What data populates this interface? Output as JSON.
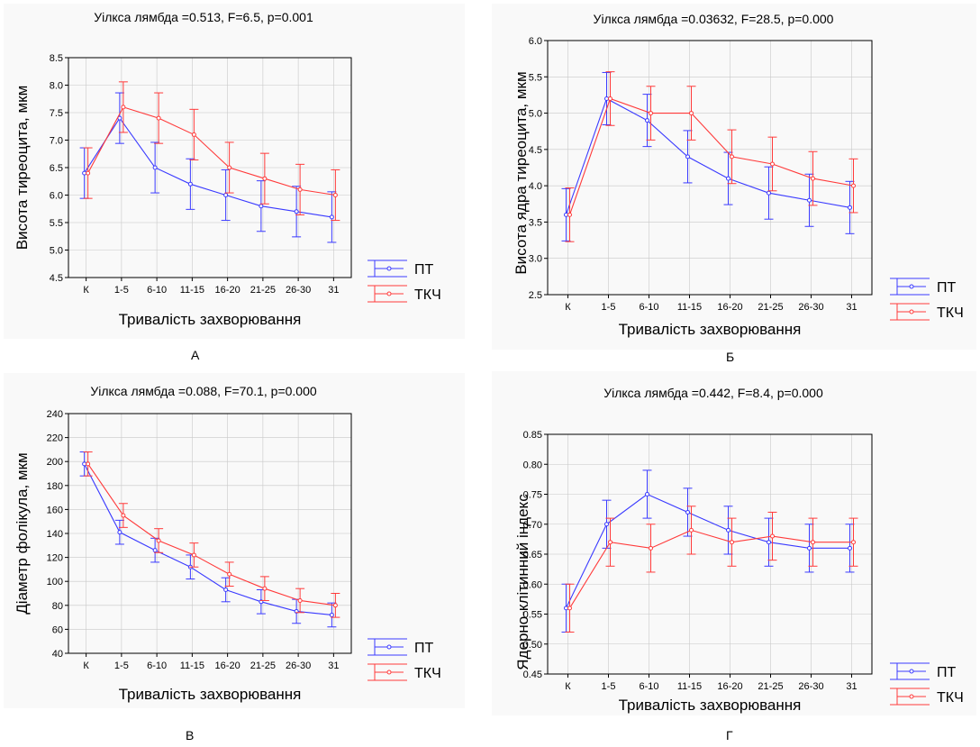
{
  "legend": {
    "series1": "ПТ",
    "series2": "ТКЧ"
  },
  "colors": {
    "series1": "#3a3aff",
    "series2": "#ff3a3a",
    "axis": "#000000",
    "grid": "#c8c8c8",
    "panel": "#f9f9f9"
  },
  "captions": [
    "А",
    "Б",
    "В",
    "Г"
  ],
  "chart_data": [
    {
      "type": "line",
      "title": "Уілкса лямбда =0.513, F=6.5, p=0.001",
      "xlabel": "Тривалість захворювання",
      "ylabel": "Висота  тиреоцита,  мкм",
      "categories": [
        "К",
        "1-5",
        "6-10",
        "11-15",
        "16-20",
        "21-25",
        "26-30",
        "31"
      ],
      "ylim": [
        4.5,
        8.5
      ],
      "yticks": [
        "4.5",
        "5.0",
        "5.5",
        "6.0",
        "6.5",
        "7.0",
        "7.5",
        "8.0",
        "8.5"
      ],
      "series": [
        {
          "name": "ПТ",
          "values": [
            6.4,
            7.4,
            6.5,
            6.2,
            6.0,
            5.8,
            5.7,
            5.6
          ],
          "err": [
            0.46,
            0.46,
            0.46,
            0.46,
            0.46,
            0.46,
            0.46,
            0.46
          ]
        },
        {
          "name": "ТКЧ",
          "values": [
            6.4,
            7.6,
            7.4,
            7.1,
            6.5,
            6.3,
            6.1,
            6.0
          ],
          "err": [
            0.46,
            0.46,
            0.46,
            0.46,
            0.46,
            0.46,
            0.46,
            0.46
          ]
        }
      ]
    },
    {
      "type": "line",
      "title": "Уілкса лямбда =0.03632, F=28.5, p=0.000",
      "xlabel": "Тривалість захворювання",
      "ylabel": "Висота ядра тиреоцита, мкм",
      "categories": [
        "К",
        "1-5",
        "6-10",
        "11-15",
        "16-20",
        "21-25",
        "26-30",
        "31"
      ],
      "ylim": [
        2.5,
        6.0
      ],
      "yticks": [
        "2.5",
        "3.0",
        "3.5",
        "4.0",
        "4.5",
        "5.0",
        "5.5",
        "6.0"
      ],
      "series": [
        {
          "name": "ПТ",
          "values": [
            3.6,
            5.2,
            4.9,
            4.4,
            4.1,
            3.9,
            3.8,
            3.7
          ],
          "err": [
            0.36,
            0.36,
            0.36,
            0.36,
            0.36,
            0.36,
            0.36,
            0.36
          ]
        },
        {
          "name": "ТКЧ",
          "values": [
            3.6,
            5.2,
            5.0,
            5.0,
            4.4,
            4.3,
            4.1,
            4.0
          ],
          "err": [
            0.37,
            0.37,
            0.37,
            0.37,
            0.37,
            0.37,
            0.37,
            0.37
          ]
        }
      ]
    },
    {
      "type": "line",
      "title": "Уілкса лямбда =0.088, F=70.1, p=0.000",
      "xlabel": "Тривалість захворювання",
      "ylabel": "Діаметр  фолікула,  мкм",
      "categories": [
        "К",
        "1-5",
        "6-10",
        "11-15",
        "16-20",
        "21-25",
        "26-30",
        "31"
      ],
      "ylim": [
        40,
        240
      ],
      "yticks": [
        "40",
        "60",
        "80",
        "100",
        "120",
        "140",
        "160",
        "180",
        "200",
        "220",
        "240"
      ],
      "series": [
        {
          "name": "ПТ",
          "values": [
            198,
            141,
            126,
            112,
            93,
            83,
            75,
            72
          ],
          "err": [
            10,
            10,
            10,
            10,
            10,
            10,
            10,
            10
          ]
        },
        {
          "name": "ТКЧ",
          "values": [
            198,
            155,
            134,
            122,
            106,
            94,
            84,
            80
          ],
          "err": [
            10,
            10,
            10,
            10,
            10,
            10,
            10,
            10
          ]
        }
      ]
    },
    {
      "type": "line",
      "title": "Уілкса лямбда =0.442, F=8.4, p=0.000",
      "xlabel": "Тривалість захворювання",
      "ylabel": "Ядерно-клітинний  індекс",
      "categories": [
        "К",
        "1-5",
        "6-10",
        "11-15",
        "16-20",
        "21-25",
        "26-30",
        "31"
      ],
      "ylim": [
        0.45,
        0.85
      ],
      "yticks": [
        "0.45",
        "0.50",
        "0.55",
        "0.60",
        "0.65",
        "0.70",
        "0.75",
        "0.80",
        "0.85"
      ],
      "series": [
        {
          "name": "ПТ",
          "values": [
            0.56,
            0.7,
            0.75,
            0.72,
            0.69,
            0.67,
            0.66,
            0.66
          ],
          "err": [
            0.04,
            0.04,
            0.04,
            0.04,
            0.04,
            0.04,
            0.04,
            0.04
          ]
        },
        {
          "name": "ТКЧ",
          "values": [
            0.56,
            0.67,
            0.66,
            0.69,
            0.67,
            0.68,
            0.67,
            0.67
          ],
          "err": [
            0.04,
            0.04,
            0.04,
            0.04,
            0.04,
            0.04,
            0.04,
            0.04
          ]
        }
      ]
    }
  ]
}
